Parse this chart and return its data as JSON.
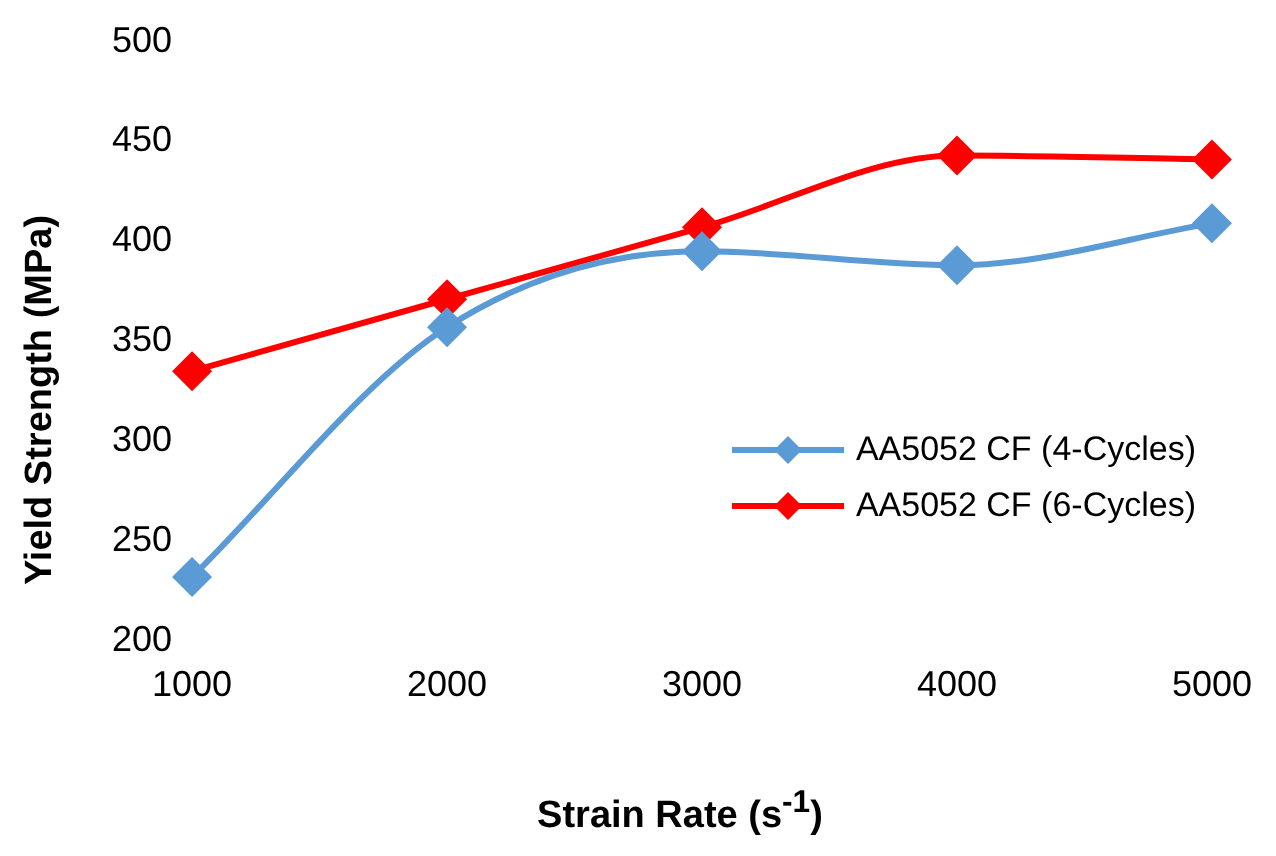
{
  "chart_data": {
    "type": "line",
    "xlabel": "Strain Rate (s$^{-1}$)",
    "ylabel": "Yield  Strength (MPa)",
    "categories": [
      "1000",
      "2000",
      "3000",
      "4000",
      "5000"
    ],
    "series": [
      {
        "name": "AA5052 CF (4-Cycles)",
        "color": "#5b9bd5",
        "values": [
          232,
          357,
          395,
          388,
          409
        ]
      },
      {
        "name": "AA5052 CF (6-Cycles)",
        "color": "#ff0000",
        "values": [
          335,
          371,
          407,
          443,
          441
        ]
      }
    ],
    "ylim": [
      200,
      500
    ],
    "yticks": [
      200,
      250,
      300,
      350,
      400,
      450,
      500
    ],
    "grid": false,
    "legend": "right",
    "marker": "diamond",
    "line_style": "solid"
  }
}
